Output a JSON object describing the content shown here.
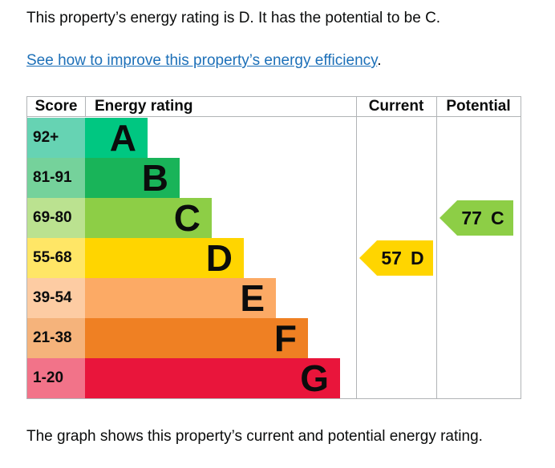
{
  "page": {
    "intro": "This property’s energy rating is D. It has the potential to be C.",
    "improve_link": {
      "text": "See how to improve this property’s energy efficiency",
      "suffix": "."
    },
    "caption": "The graph shows this property’s current and potential energy rating."
  },
  "colors": {
    "link": "#1d70b8",
    "text": "#0b0c0c",
    "table_border": "#b1b4b6"
  },
  "chart_data": {
    "type": "bar",
    "orientation": "horizontal",
    "columns": [
      "Score",
      "Energy rating",
      "Current",
      "Potential"
    ],
    "bands": [
      {
        "letter": "A",
        "score": "92+",
        "color": "#00c781",
        "tint": "#66d3b3"
      },
      {
        "letter": "B",
        "score": "81-91",
        "color": "#19b459",
        "tint": "#75d29b"
      },
      {
        "letter": "C",
        "score": "69-80",
        "color": "#8dce46",
        "tint": "#bbe290"
      },
      {
        "letter": "D",
        "score": "55-68",
        "color": "#ffd500",
        "tint": "#ffe666"
      },
      {
        "letter": "E",
        "score": "39-54",
        "color": "#fcaa65",
        "tint": "#fdcca3"
      },
      {
        "letter": "F",
        "score": "21-38",
        "color": "#ef8023",
        "tint": "#f5b37b"
      },
      {
        "letter": "G",
        "score": "1-20",
        "color": "#e9153b",
        "tint": "#f27389"
      }
    ],
    "current": {
      "value": "57",
      "band": "D",
      "color": "#ffd500"
    },
    "potential": {
      "value": "77",
      "band": "C",
      "color": "#8dce46"
    }
  }
}
